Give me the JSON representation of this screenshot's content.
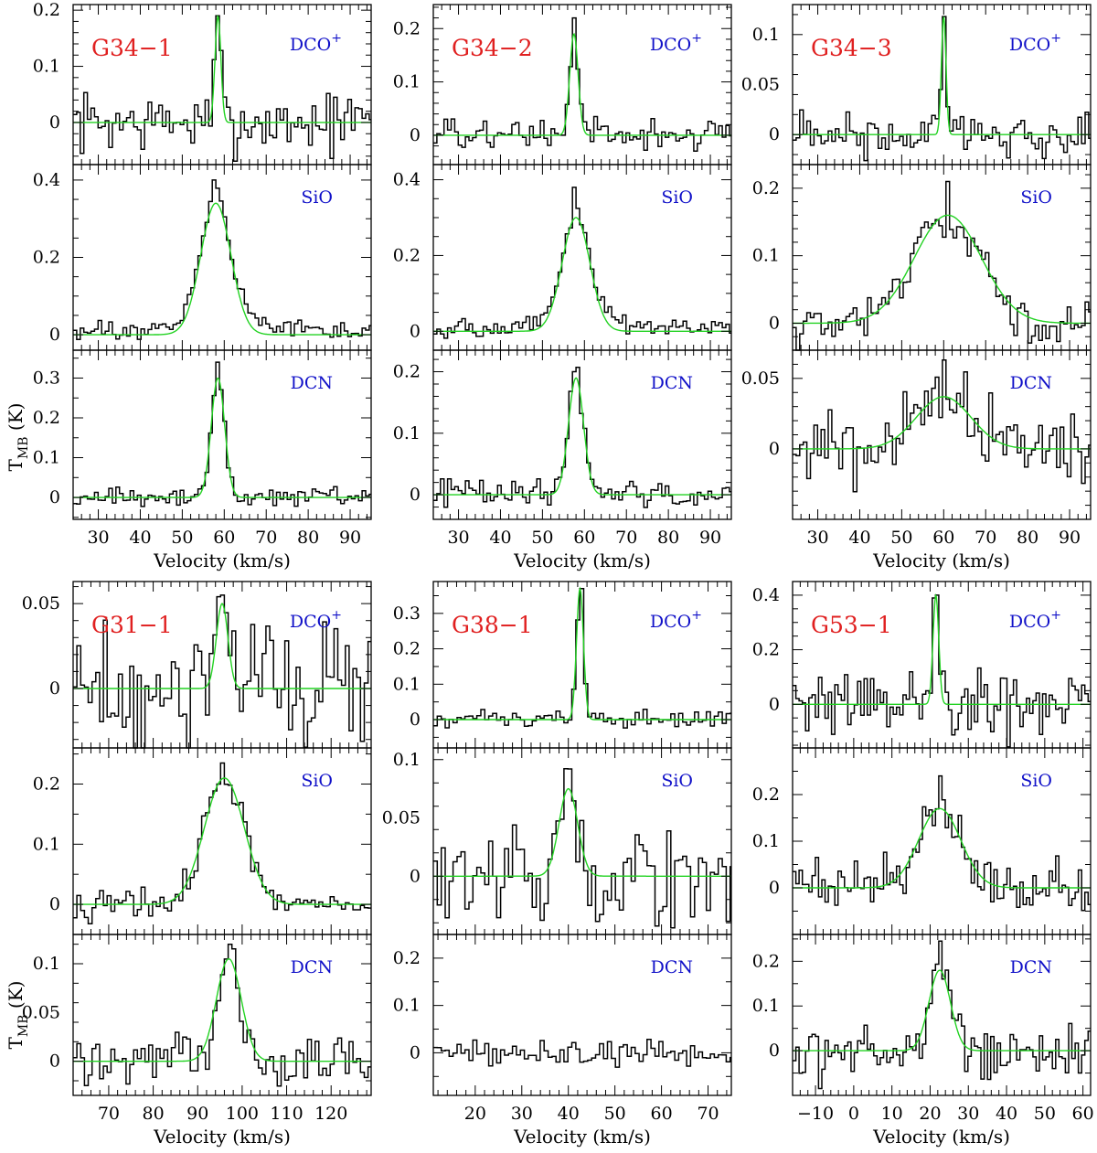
{
  "chart_data": {
    "type": "line",
    "xlabel": "Velocity (km/s)",
    "ylabel": "T_MB (K)",
    "fit_color": "#22d222",
    "spectrum_color": "#000000",
    "source_label_color": "#e02020",
    "molecule_label_color": "#1010c8",
    "sources": [
      {
        "name": "G34−1",
        "xlim": [
          24,
          95
        ],
        "xticks": [
          30,
          40,
          50,
          60,
          70,
          80,
          90
        ],
        "panels": [
          {
            "molecule": "DCO",
            "sup": "+",
            "ylim": [
              -0.075,
              0.21
            ],
            "yticks": [
              0,
              0.1,
              0.2
            ],
            "ytick_labels": [
              "0",
              "0.1",
              "0.2"
            ],
            "fit": {
              "amp": 0.19,
              "center": 58.5,
              "sigma": 0.7
            },
            "noise": 0.027,
            "peak": 0.19
          },
          {
            "molecule": "SiO",
            "sup": "",
            "ylim": [
              -0.04,
              0.44
            ],
            "yticks": [
              0,
              0.2,
              0.4
            ],
            "ytick_labels": [
              "0",
              "0.2",
              "0.4"
            ],
            "fit": {
              "amp": 0.34,
              "center": 58.0,
              "sigma": 3.6
            },
            "noise": 0.012,
            "peak": 0.4,
            "wing": 0.05
          },
          {
            "molecule": "DCN",
            "sup": "",
            "ylim": [
              -0.055,
              0.37
            ],
            "yticks": [
              0,
              0.1,
              0.2,
              0.3
            ],
            "ytick_labels": [
              "0",
              "0.1",
              "0.2",
              "0.3"
            ],
            "fit": {
              "amp": 0.3,
              "center": 58.5,
              "sigma": 1.6
            },
            "noise": 0.012,
            "peak": 0.34
          }
        ]
      },
      {
        "name": "G34−2",
        "xlim": [
          24,
          95
        ],
        "xticks": [
          30,
          40,
          50,
          60,
          70,
          80,
          90
        ],
        "panels": [
          {
            "molecule": "DCO",
            "sup": "+",
            "ylim": [
              -0.055,
              0.245
            ],
            "yticks": [
              0,
              0.1,
              0.2
            ],
            "ytick_labels": [
              "0",
              "0.1",
              "0.2"
            ],
            "fit": {
              "amp": 0.19,
              "center": 57.5,
              "sigma": 1.0
            },
            "noise": 0.015,
            "peak": 0.22
          },
          {
            "molecule": "SiO",
            "sup": "",
            "ylim": [
              -0.05,
              0.44
            ],
            "yticks": [
              0,
              0.2,
              0.4
            ],
            "ytick_labels": [
              "0",
              "0.2",
              "0.4"
            ],
            "fit": {
              "amp": 0.3,
              "center": 58.0,
              "sigma": 3.3
            },
            "noise": 0.012,
            "peak": 0.38,
            "wing": 0.04
          },
          {
            "molecule": "DCN",
            "sup": "",
            "ylim": [
              -0.04,
              0.235
            ],
            "yticks": [
              0,
              0.1,
              0.2
            ],
            "ytick_labels": [
              "0",
              "0.1",
              "0.2"
            ],
            "fit": {
              "amp": 0.19,
              "center": 58.0,
              "sigma": 1.8
            },
            "noise": 0.012,
            "peak": 0.2
          }
        ]
      },
      {
        "name": "G34−3",
        "xlim": [
          24,
          95
        ],
        "xticks": [
          30,
          40,
          50,
          60,
          70,
          80,
          90
        ],
        "panels": [
          {
            "molecule": "DCO",
            "sup": "+",
            "ylim": [
              -0.03,
              0.13
            ],
            "yticks": [
              0,
              0.05,
              0.1
            ],
            "ytick_labels": [
              "0",
              "0.05",
              "0.1"
            ],
            "fit": {
              "amp": 0.118,
              "center": 60.0,
              "sigma": 0.55
            },
            "noise": 0.012,
            "peak": 0.118
          },
          {
            "molecule": "SiO",
            "sup": "",
            "ylim": [
              -0.04,
              0.235
            ],
            "yticks": [
              0,
              0.1,
              0.2
            ],
            "ytick_labels": [
              "0",
              "0.1",
              "0.2"
            ],
            "fit": {
              "amp": 0.16,
              "center": 61.0,
              "sigma": 8.0
            },
            "noise": 0.018,
            "peak": 0.21
          },
          {
            "molecule": "DCN",
            "sup": "",
            "ylim": [
              -0.05,
              0.07
            ],
            "yticks": [
              0,
              0.05
            ],
            "ytick_labels": [
              "0",
              "0.05"
            ],
            "fit": {
              "amp": 0.037,
              "center": 60.0,
              "sigma": 6.5
            },
            "noise": 0.015,
            "peak": 0.063
          }
        ]
      },
      {
        "name": "G31−1",
        "xlim": [
          62,
          129
        ],
        "xticks": [
          70,
          80,
          90,
          100,
          110,
          120
        ],
        "panels": [
          {
            "molecule": "DCO",
            "sup": "+",
            "ylim": [
              -0.035,
              0.063
            ],
            "yticks": [
              0,
              0.05
            ],
            "ytick_labels": [
              "0",
              "0.05"
            ],
            "fit": {
              "amp": 0.05,
              "center": 95.5,
              "sigma": 1.3
            },
            "noise": 0.02,
            "peak": 0.055
          },
          {
            "molecule": "SiO",
            "sup": "",
            "ylim": [
              -0.05,
              0.26
            ],
            "yticks": [
              0,
              0.1,
              0.2
            ],
            "ytick_labels": [
              "0",
              "0.1",
              "0.2"
            ],
            "fit": {
              "amp": 0.21,
              "center": 96.0,
              "sigma": 4.5
            },
            "noise": 0.012,
            "peak": 0.235
          },
          {
            "molecule": "DCN",
            "sup": "",
            "ylim": [
              -0.035,
              0.13
            ],
            "yticks": [
              0,
              0.05,
              0.1
            ],
            "ytick_labels": [
              "0",
              "0.05",
              "0.1"
            ],
            "fit": {
              "amp": 0.105,
              "center": 97.0,
              "sigma": 2.8
            },
            "noise": 0.015,
            "peak": 0.12
          }
        ]
      },
      {
        "name": "G38−1",
        "xlim": [
          11,
          75
        ],
        "xticks": [
          20,
          30,
          40,
          50,
          60,
          70
        ],
        "panels": [
          {
            "molecule": "DCO",
            "sup": "+",
            "ylim": [
              -0.08,
              0.39
            ],
            "yticks": [
              0,
              0.1,
              0.2,
              0.3
            ],
            "ytick_labels": [
              "0",
              "0.1",
              "0.2",
              "0.3"
            ],
            "fit": {
              "amp": 0.37,
              "center": 42.5,
              "sigma": 0.75
            },
            "noise": 0.012,
            "peak": 0.37
          },
          {
            "molecule": "SiO",
            "sup": "",
            "ylim": [
              -0.05,
              0.11
            ],
            "yticks": [
              0,
              0.05,
              0.1
            ],
            "ytick_labels": [
              "0",
              "0.05",
              "0.1"
            ],
            "fit": {
              "amp": 0.075,
              "center": 40.0,
              "sigma": 2.0
            },
            "noise": 0.02,
            "peak": 0.092
          },
          {
            "molecule": "DCN",
            "sup": "",
            "ylim": [
              -0.09,
              0.25
            ],
            "yticks": [
              0,
              0.1,
              0.2
            ],
            "ytick_labels": [
              "0",
              "0.1",
              "0.2"
            ],
            "fit": null,
            "noise": 0.015,
            "peak": 0.05
          }
        ]
      },
      {
        "name": "G53−1",
        "xlim": [
          -16,
          62
        ],
        "xticks": [
          -10,
          0,
          10,
          20,
          30,
          40,
          50,
          60
        ],
        "panels": [
          {
            "molecule": "DCO",
            "sup": "+",
            "ylim": [
              -0.16,
              0.45
            ],
            "yticks": [
              0,
              0.2,
              0.4
            ],
            "ytick_labels": [
              "0",
              "0.2",
              "0.4"
            ],
            "fit": {
              "amp": 0.4,
              "center": 21.5,
              "sigma": 0.75
            },
            "noise": 0.065,
            "peak": 0.4
          },
          {
            "molecule": "SiO",
            "sup": "",
            "ylim": [
              -0.1,
              0.3
            ],
            "yticks": [
              0,
              0.1,
              0.2
            ],
            "ytick_labels": [
              "0",
              "0.1",
              "0.2"
            ],
            "fit": {
              "amp": 0.17,
              "center": 22.5,
              "sigma": 5.5
            },
            "noise": 0.03,
            "peak": 0.24
          },
          {
            "molecule": "DCN",
            "sup": "",
            "ylim": [
              -0.1,
              0.26
            ],
            "yticks": [
              0,
              0.1,
              0.2
            ],
            "ytick_labels": [
              "0",
              "0.1",
              "0.2"
            ],
            "fit": {
              "amp": 0.18,
              "center": 22.5,
              "sigma": 2.8
            },
            "noise": 0.03,
            "peak": 0.245
          }
        ]
      }
    ]
  }
}
